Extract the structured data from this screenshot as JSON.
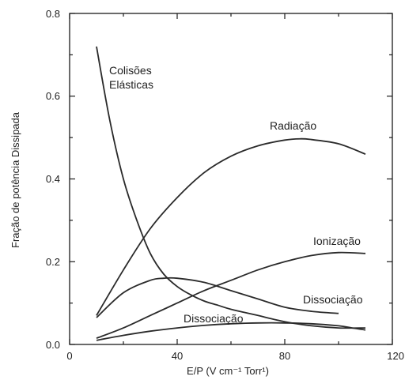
{
  "chart_data": {
    "type": "line",
    "title": "",
    "xlabel": "E/P (V cm⁻¹ Torr¹)",
    "ylabel": "Fração de potência Dissipada",
    "xlim": [
      0,
      120
    ],
    "ylim": [
      0,
      0.8
    ],
    "x_ticks": [
      "0",
      "40",
      "80",
      "120"
    ],
    "y_ticks": [
      "0.0",
      "0.2",
      "0.4",
      "0.6",
      "0.8"
    ],
    "grid": false,
    "legend": "none",
    "series": [
      {
        "name": "Colisões Elásticas",
        "x": [
          10,
          15,
          20,
          25,
          30,
          35,
          40,
          45,
          50,
          55,
          60,
          70,
          80,
          90,
          100,
          110
        ],
        "y": [
          0.72,
          0.54,
          0.4,
          0.3,
          0.22,
          0.17,
          0.14,
          0.12,
          0.105,
          0.095,
          0.085,
          0.07,
          0.055,
          0.045,
          0.04,
          0.04
        ]
      },
      {
        "name": "Radiação",
        "x": [
          10,
          20,
          30,
          40,
          50,
          60,
          70,
          80,
          86,
          90,
          100,
          110
        ],
        "y": [
          0.07,
          0.18,
          0.28,
          0.355,
          0.415,
          0.455,
          0.48,
          0.494,
          0.497,
          0.495,
          0.485,
          0.46
        ]
      },
      {
        "name": "Ionização",
        "x": [
          10,
          20,
          30,
          40,
          50,
          60,
          70,
          80,
          90,
          100,
          110
        ],
        "y": [
          0.015,
          0.04,
          0.07,
          0.1,
          0.13,
          0.155,
          0.18,
          0.2,
          0.215,
          0.222,
          0.22
        ]
      },
      {
        "name": "Dissociação",
        "labels": [
          "Dissociação",
          "Dissociação"
        ],
        "x": [
          10,
          20,
          30,
          35,
          40,
          50,
          60,
          70,
          80,
          90,
          100
        ],
        "y": [
          0.065,
          0.125,
          0.155,
          0.16,
          0.16,
          0.15,
          0.13,
          0.11,
          0.09,
          0.08,
          0.075
        ]
      },
      {
        "name": "Dissociação (2)",
        "x": [
          10,
          20,
          30,
          40,
          50,
          60,
          70,
          80,
          90,
          100,
          105,
          110
        ],
        "y": [
          0.01,
          0.022,
          0.032,
          0.04,
          0.046,
          0.05,
          0.052,
          0.052,
          0.05,
          0.045,
          0.04,
          0.035
        ]
      }
    ],
    "annotations": [
      {
        "text": "Colisões",
        "series": 0
      },
      {
        "text": "Elásticas",
        "series": 0
      },
      {
        "text": "Radiação",
        "series": 1
      },
      {
        "text": "Ionização",
        "series": 2
      },
      {
        "text": "Dissociação",
        "series": 3
      },
      {
        "text": "Dissociação",
        "series": 4
      }
    ]
  }
}
